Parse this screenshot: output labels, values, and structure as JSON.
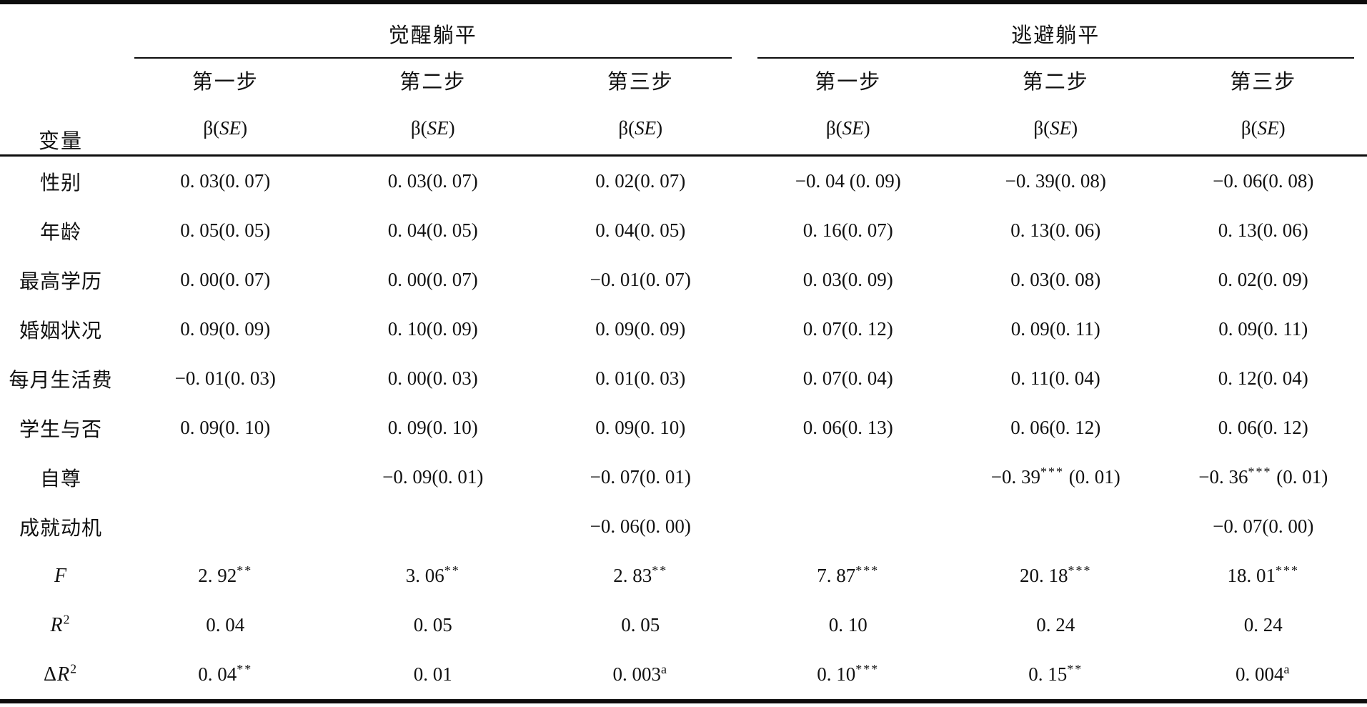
{
  "table": {
    "variable_label": "变量",
    "beta_se_label": "β(~{SE})",
    "groups": [
      {
        "label": "觉醒躺平",
        "steps": [
          "第一步",
          "第二步",
          "第三步"
        ]
      },
      {
        "label": "逃避躺平",
        "steps": [
          "第一步",
          "第二步",
          "第三步"
        ]
      }
    ],
    "rows": [
      {
        "label": "性别",
        "cells": [
          "0. 03(0. 07)",
          "0. 03(0. 07)",
          "0. 02(0. 07)",
          "−0. 04 (0. 09)",
          "−0. 39(0. 08)",
          "−0. 06(0. 08)"
        ]
      },
      {
        "label": "年龄",
        "cells": [
          "0. 05(0. 05)",
          "0. 04(0. 05)",
          "0. 04(0. 05)",
          "0. 16(0. 07)",
          "0. 13(0. 06)",
          "0. 13(0. 06)"
        ]
      },
      {
        "label": "最高学历",
        "cells": [
          "0. 00(0. 07)",
          "0. 00(0. 07)",
          "−0. 01(0. 07)",
          "0. 03(0. 09)",
          "0. 03(0. 08)",
          "0. 02(0. 09)"
        ]
      },
      {
        "label": "婚姻状况",
        "cells": [
          "0. 09(0. 09)",
          "0. 10(0. 09)",
          "0. 09(0. 09)",
          "0. 07(0. 12)",
          "0. 09(0. 11)",
          "0. 09(0. 11)"
        ]
      },
      {
        "label": "每月生活费",
        "cells": [
          "−0. 01(0. 03)",
          "0. 00(0. 03)",
          "0. 01(0. 03)",
          "0. 07(0. 04)",
          "0. 11(0. 04)",
          "0. 12(0. 04)"
        ]
      },
      {
        "label": "学生与否",
        "cells": [
          "0. 09(0. 10)",
          "0. 09(0. 10)",
          "0. 09(0. 10)",
          "0. 06(0. 13)",
          "0. 06(0. 12)",
          "0. 06(0. 12)"
        ]
      },
      {
        "label": "自尊",
        "cells": [
          "",
          "−0. 09(0. 01)",
          "−0. 07(0. 01)",
          "",
          "−0. 39^{***} (0. 01)",
          "−0. 36^{***} (0. 01)"
        ]
      },
      {
        "label": "成就动机",
        "cells": [
          "",
          "",
          "−0. 06(0. 00)",
          "",
          "",
          "−0. 07(0. 00)"
        ]
      },
      {
        "label": "~{F}",
        "cells": [
          "2. 92^{**}",
          "3. 06^{**}",
          "2. 83^{**}",
          "7. 87^{***}",
          "20. 18^{***}",
          "18. 01^{***}"
        ]
      },
      {
        "label": "~{R}^{2}",
        "cells": [
          "0. 04",
          "0. 05",
          "0. 05",
          "0. 10",
          "0. 24",
          "0. 24"
        ]
      },
      {
        "label": "Δ~{R}^{2}",
        "cells": [
          "0. 04^{**}",
          "0. 01",
          "0. 003^{a}",
          "0. 10^{***}",
          "0. 15^{**}",
          "0. 004^{a}"
        ]
      }
    ]
  }
}
